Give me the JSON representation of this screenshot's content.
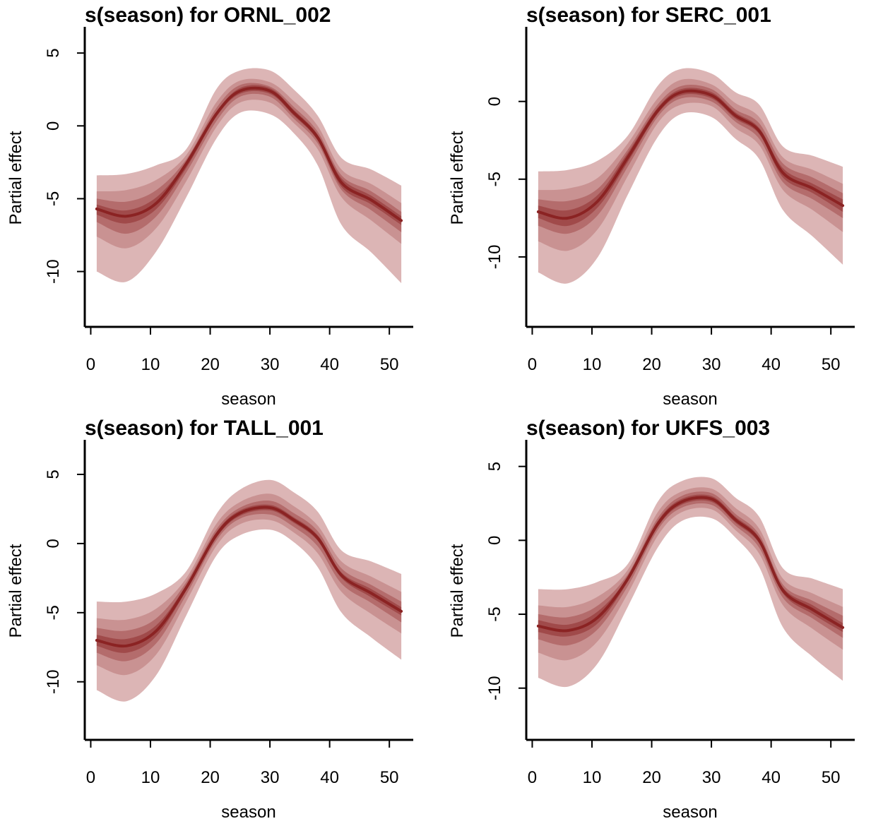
{
  "colors": {
    "band_outer": "#dcb5b5",
    "band_2": "#c99292",
    "band_3": "#b46c6c",
    "band_inner": "#a04a4a",
    "line": "#8b2323",
    "axis": "#000000"
  },
  "chart_data": [
    {
      "type": "area",
      "title": "s(season) for ORNL_002",
      "xlabel": "season",
      "ylabel": "Partial effect",
      "xlim": [
        -1,
        54
      ],
      "ylim": [
        -13.8,
        6.8
      ],
      "xticks": [
        "0",
        "10",
        "20",
        "30",
        "40",
        "50"
      ],
      "yticks": [
        "-10",
        "-5",
        "0",
        "5"
      ],
      "x": [
        1,
        6,
        11,
        16,
        21,
        25,
        30,
        34,
        38,
        42,
        47,
        52
      ],
      "mean": [
        -5.7,
        -6.2,
        -5.3,
        -2.6,
        0.8,
        2.4,
        2.4,
        0.9,
        -0.8,
        -3.9,
        -5.1,
        -6.5
      ],
      "bands": [
        {
          "upper": [
            -3.4,
            -3.3,
            -2.7,
            -1.6,
            2.5,
            3.8,
            3.8,
            2.5,
            0.7,
            -2.2,
            -3.0,
            -4.1
          ],
          "lower": [
            -10.0,
            -10.7,
            -8.6,
            -4.9,
            -0.9,
            0.9,
            0.8,
            -0.5,
            -2.7,
            -6.8,
            -8.7,
            -10.8
          ]
        },
        {
          "upper": [
            -4.5,
            -4.4,
            -3.7,
            -2.0,
            1.6,
            3.1,
            3.0,
            1.7,
            -0.0,
            -3.0,
            -4.0,
            -5.3
          ],
          "lower": [
            -7.6,
            -8.4,
            -7.0,
            -3.8,
            -0.1,
            1.6,
            1.6,
            0.2,
            -1.6,
            -4.9,
            -6.5,
            -8.1
          ]
        },
        {
          "upper": [
            -5.0,
            -5.2,
            -4.4,
            -2.3,
            1.2,
            2.8,
            2.7,
            1.3,
            -0.4,
            -3.4,
            -4.5,
            -5.9
          ],
          "lower": [
            -6.6,
            -7.4,
            -6.2,
            -3.2,
            0.3,
            2.0,
            2.0,
            0.5,
            -1.2,
            -4.4,
            -5.8,
            -7.3
          ]
        },
        {
          "upper": [
            -5.4,
            -5.8,
            -4.9,
            -2.5,
            0.9,
            2.6,
            2.6,
            1.1,
            -0.6,
            -3.6,
            -4.8,
            -6.2
          ],
          "lower": [
            -6.1,
            -6.7,
            -5.7,
            -2.9,
            0.6,
            2.2,
            2.2,
            0.7,
            -1.0,
            -4.2,
            -5.4,
            -6.8
          ]
        }
      ]
    },
    {
      "type": "area",
      "title": "s(season) for SERC_001",
      "xlabel": "season",
      "ylabel": "Partial effect",
      "xlim": [
        -1,
        54
      ],
      "ylim": [
        -14.5,
        4.8
      ],
      "xticks": [
        "0",
        "10",
        "20",
        "30",
        "40",
        "50"
      ],
      "yticks": [
        "-10",
        "-5",
        "0"
      ],
      "x": [
        1,
        6,
        11,
        16,
        21,
        25,
        30,
        34,
        38,
        42,
        47,
        52
      ],
      "mean": [
        -7.1,
        -7.5,
        -6.4,
        -3.6,
        -0.6,
        0.6,
        0.4,
        -0.9,
        -1.9,
        -4.6,
        -5.6,
        -6.7
      ],
      "bands": [
        {
          "upper": [
            -4.5,
            -4.4,
            -3.8,
            -2.2,
            1.0,
            2.1,
            1.8,
            0.6,
            -0.2,
            -2.9,
            -3.5,
            -4.2
          ],
          "lower": [
            -11.0,
            -11.7,
            -10.0,
            -6.0,
            -2.3,
            -0.8,
            -1.0,
            -2.4,
            -3.7,
            -7.0,
            -8.7,
            -10.5
          ]
        },
        {
          "upper": [
            -5.7,
            -5.6,
            -4.9,
            -2.7,
            0.2,
            1.4,
            1.1,
            -0.1,
            -1.0,
            -3.6,
            -4.4,
            -5.3
          ],
          "lower": [
            -9.0,
            -9.6,
            -8.2,
            -4.8,
            -1.4,
            -0.2,
            -0.3,
            -1.7,
            -2.8,
            -5.7,
            -7.0,
            -8.4
          ]
        },
        {
          "upper": [
            -6.3,
            -6.4,
            -5.6,
            -3.1,
            -0.2,
            1.0,
            0.8,
            -0.5,
            -1.4,
            -4.0,
            -4.9,
            -5.9
          ],
          "lower": [
            -8.0,
            -8.5,
            -7.3,
            -4.2,
            -1.0,
            0.2,
            0.0,
            -1.3,
            -2.4,
            -5.2,
            -6.3,
            -7.5
          ]
        },
        {
          "upper": [
            -6.7,
            -7.0,
            -6.0,
            -3.3,
            -0.4,
            0.8,
            0.6,
            -0.7,
            -1.7,
            -4.3,
            -5.3,
            -6.3
          ],
          "lower": [
            -7.5,
            -8.0,
            -6.8,
            -3.9,
            -0.8,
            0.4,
            0.2,
            -1.1,
            -2.1,
            -4.9,
            -5.9,
            -7.1
          ]
        }
      ]
    },
    {
      "type": "area",
      "title": "s(season) for TALL_001",
      "xlabel": "season",
      "ylabel": "Partial effect",
      "xlim": [
        -1,
        54
      ],
      "ylim": [
        -14.2,
        7.5
      ],
      "xticks": [
        "0",
        "10",
        "20",
        "30",
        "40",
        "50"
      ],
      "yticks": [
        "-10",
        "-5",
        "0",
        "5"
      ],
      "x": [
        1,
        6,
        11,
        16,
        21,
        25,
        30,
        34,
        38,
        42,
        47,
        52
      ],
      "mean": [
        -7.0,
        -7.4,
        -6.3,
        -3.2,
        0.6,
        2.2,
        2.6,
        1.7,
        0.4,
        -2.3,
        -3.6,
        -4.9
      ],
      "bands": [
        {
          "upper": [
            -4.2,
            -4.2,
            -3.6,
            -2.0,
            2.1,
            3.9,
            4.6,
            3.7,
            2.3,
            -0.5,
            -1.3,
            -2.2
          ],
          "lower": [
            -10.6,
            -11.4,
            -9.5,
            -5.2,
            -0.9,
            0.6,
            1.0,
            0.1,
            -1.7,
            -5.0,
            -6.8,
            -8.4
          ]
        },
        {
          "upper": [
            -5.4,
            -5.5,
            -4.7,
            -2.5,
            1.4,
            3.0,
            3.6,
            2.7,
            1.3,
            -1.3,
            -2.4,
            -3.5
          ],
          "lower": [
            -8.8,
            -9.5,
            -8.0,
            -4.2,
            -0.2,
            1.4,
            1.7,
            0.8,
            -0.7,
            -3.5,
            -5.1,
            -6.5
          ]
        },
        {
          "upper": [
            -6.1,
            -6.3,
            -5.4,
            -2.8,
            1.0,
            2.6,
            3.1,
            2.2,
            0.9,
            -1.8,
            -3.0,
            -4.2
          ],
          "lower": [
            -7.9,
            -8.5,
            -7.2,
            -3.7,
            0.2,
            1.8,
            2.1,
            1.2,
            -0.2,
            -2.9,
            -4.3,
            -5.7
          ]
        },
        {
          "upper": [
            -6.6,
            -6.9,
            -5.9,
            -3.0,
            0.8,
            2.4,
            2.8,
            1.9,
            0.6,
            -2.1,
            -3.3,
            -4.6
          ],
          "lower": [
            -7.4,
            -7.9,
            -6.7,
            -3.4,
            0.4,
            2.0,
            2.4,
            1.5,
            0.2,
            -2.5,
            -3.9,
            -5.2
          ]
        }
      ]
    },
    {
      "type": "area",
      "title": "s(season) for UKFS_003",
      "xlabel": "season",
      "ylabel": "Partial effect",
      "xlim": [
        -1,
        54
      ],
      "ylim": [
        -13.5,
        6.8
      ],
      "xticks": [
        "0",
        "10",
        "20",
        "30",
        "40",
        "50"
      ],
      "yticks": [
        "-10",
        "-5",
        "0",
        "5"
      ],
      "x": [
        1,
        6,
        11,
        16,
        21,
        25,
        30,
        34,
        38,
        42,
        47,
        52
      ],
      "mean": [
        -5.8,
        -6.1,
        -5.2,
        -2.6,
        1.1,
        2.6,
        2.8,
        1.4,
        0.0,
        -3.4,
        -4.7,
        -5.9
      ],
      "bands": [
        {
          "upper": [
            -3.3,
            -3.3,
            -2.8,
            -1.6,
            2.6,
            4.0,
            4.2,
            2.9,
            1.6,
            -1.9,
            -2.6,
            -3.3
          ],
          "lower": [
            -9.3,
            -9.9,
            -8.3,
            -4.5,
            -0.5,
            1.3,
            1.5,
            0.2,
            -1.8,
            -5.9,
            -7.9,
            -9.5
          ]
        },
        {
          "upper": [
            -4.4,
            -4.5,
            -3.8,
            -2.0,
            1.9,
            3.3,
            3.5,
            2.2,
            0.8,
            -2.6,
            -3.6,
            -4.5
          ],
          "lower": [
            -7.6,
            -8.1,
            -6.8,
            -3.6,
            0.3,
            1.9,
            2.1,
            0.7,
            -0.9,
            -4.4,
            -6.0,
            -7.4
          ]
        },
        {
          "upper": [
            -5.0,
            -5.2,
            -4.4,
            -2.3,
            1.5,
            3.0,
            3.2,
            1.8,
            0.4,
            -3.0,
            -4.1,
            -5.1
          ],
          "lower": [
            -6.7,
            -7.1,
            -6.0,
            -3.1,
            0.7,
            2.2,
            2.4,
            1.0,
            -0.5,
            -3.9,
            -5.3,
            -6.6
          ]
        },
        {
          "upper": [
            -5.4,
            -5.7,
            -4.8,
            -2.5,
            1.3,
            2.8,
            3.0,
            1.6,
            0.2,
            -3.2,
            -4.4,
            -5.6
          ],
          "lower": [
            -6.2,
            -6.5,
            -5.6,
            -2.8,
            0.9,
            2.4,
            2.6,
            1.2,
            -0.2,
            -3.6,
            -5.0,
            -6.2
          ]
        }
      ]
    }
  ]
}
